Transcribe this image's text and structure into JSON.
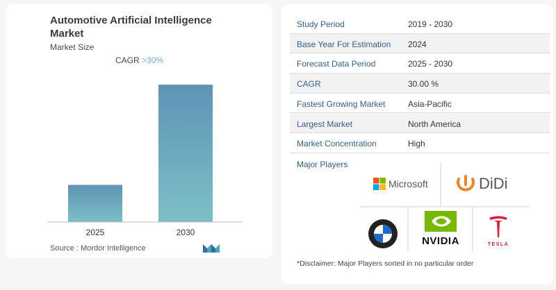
{
  "title": "Automotive Artificial Intelligence Market",
  "subtitle": "Market Size",
  "cagr": {
    "prefix": "CAGR ",
    "value": ">30%"
  },
  "source": "Source :  Mordor Intelligence",
  "chart_data": {
    "type": "bar",
    "categories": [
      "2025",
      "2030"
    ],
    "values": [
      1,
      3.7
    ],
    "title": "",
    "xlabel": "",
    "ylabel": "",
    "ylim": [
      0,
      4
    ],
    "grid": false,
    "colors": [
      "#5f93b6",
      "#7dbfc6"
    ]
  },
  "table": [
    {
      "key": "Study Period",
      "value": "2019 - 2030"
    },
    {
      "key": "Base Year For Estimation",
      "value": "2024"
    },
    {
      "key": "Forecast Data Period",
      "value": "2025 - 2030"
    },
    {
      "key": "CAGR",
      "value": "30.00 %"
    },
    {
      "key": "Fastest Growing Market",
      "value": "Asia-Pacific"
    },
    {
      "key": "Largest Market",
      "value": "North America"
    },
    {
      "key": "Market Concentration",
      "value": "High"
    }
  ],
  "players_label": "Major Players",
  "players": {
    "microsoft": "Microsoft",
    "didi": "DiDi",
    "bmw": "BMW",
    "nvidia": "NVIDIA",
    "tesla": "TESLA"
  },
  "disclaimer": "*Disclaimer: Major Players sorted in no particular order"
}
